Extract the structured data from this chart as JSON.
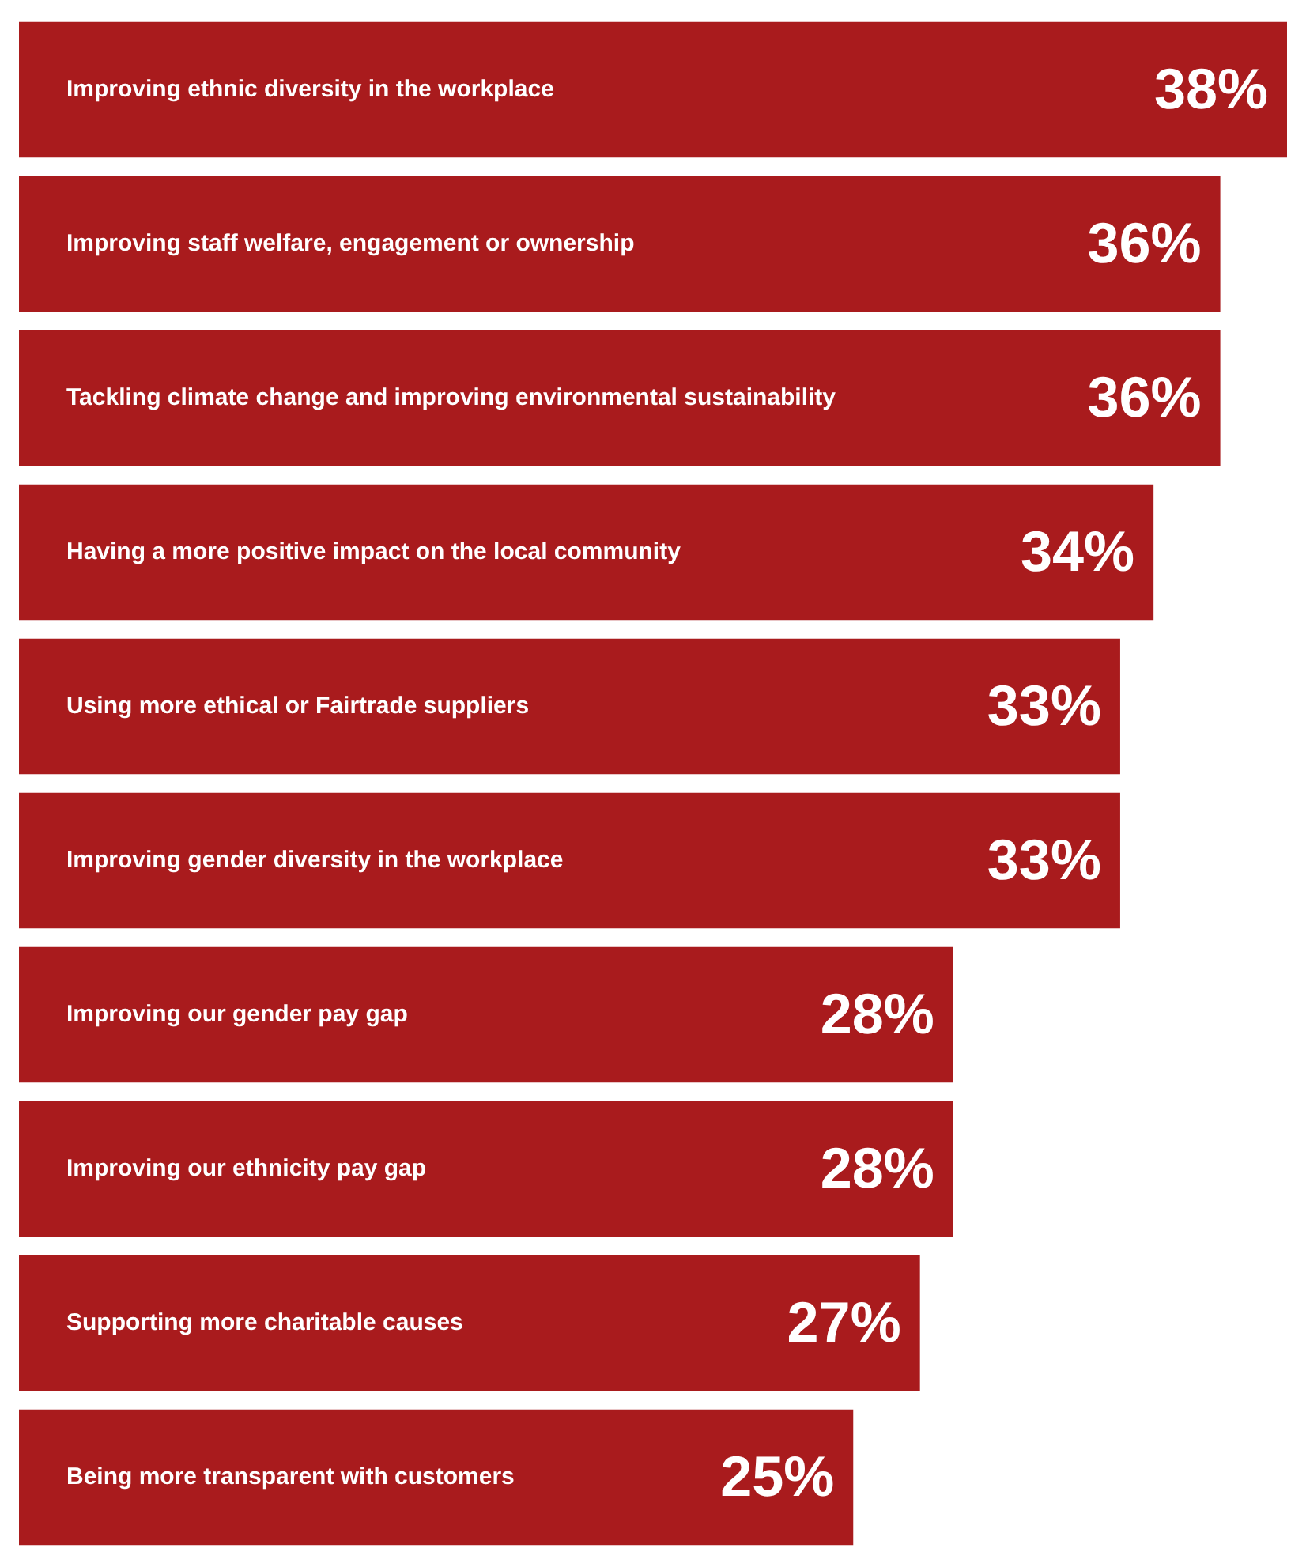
{
  "chart_data": {
    "type": "bar",
    "orientation": "horizontal",
    "data_labels": true,
    "tick_labels": false,
    "categories": [
      "Improving ethnic diversity in the workplace",
      "Improving staff welfare, engagement or ownership",
      "Tackling climate change and improving environmental sustainability",
      "Having a more positive impact on the local community",
      "Using more ethical or Fairtrade suppliers",
      "Improving gender diversity in the workplace",
      "Improving our gender pay gap",
      "Improving our ethnicity pay gap",
      "Supporting more charitable causes",
      "Being more transparent with customers"
    ],
    "values": [
      38,
      36,
      36,
      34,
      33,
      33,
      28,
      28,
      27,
      25
    ],
    "value_labels": [
      "38%",
      "36%",
      "36%",
      "34%",
      "33%",
      "33%",
      "28%",
      "28%",
      "27%",
      "25%"
    ],
    "color": "#a91b1d"
  }
}
